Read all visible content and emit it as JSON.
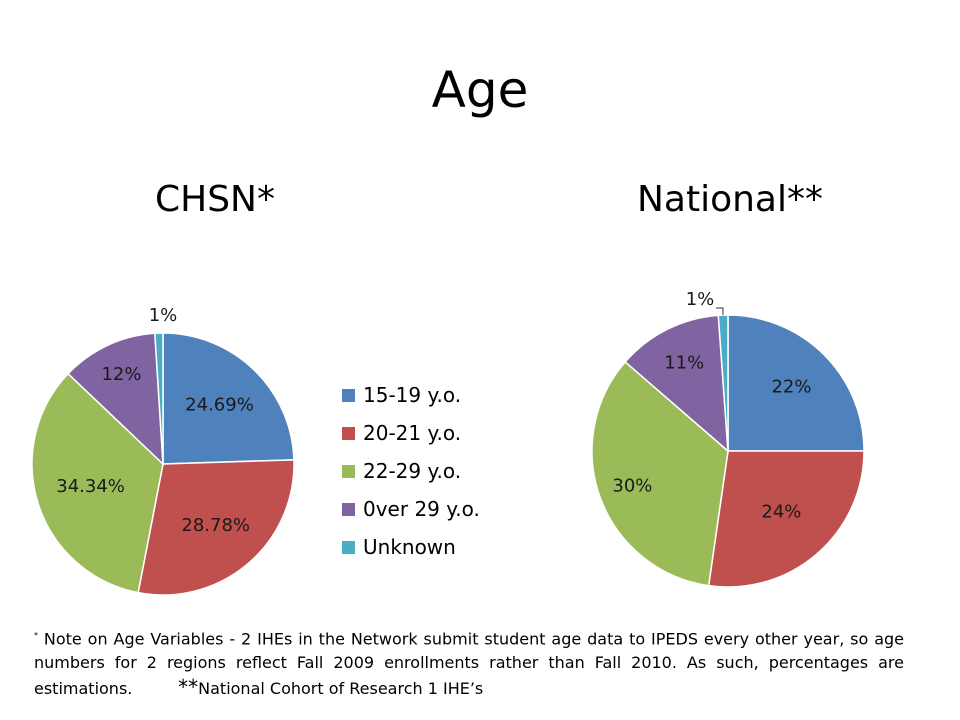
{
  "colors": {
    "15-19": "#4F81BD",
    "20-21": "#C0504D",
    "22-29": "#9BBB59",
    "over29": "#8064A2",
    "unknown": "#4BACC6"
  },
  "page": {
    "title": "Age"
  },
  "chart_data": [
    {
      "type": "pie",
      "title": "CHSN*",
      "categories": [
        "15-19 y.o.",
        "20-21 y.o.",
        "22-29 y.o.",
        "0ver 29 y.o.",
        "Unknown"
      ],
      "values": [
        24.69,
        28.78,
        34.34,
        12,
        1
      ],
      "labels": [
        "24.69%",
        "28.78%",
        "34.34%",
        "12%",
        "1%"
      ],
      "legend": "right"
    },
    {
      "type": "pie",
      "title": "National**",
      "categories": [
        "15-19 y.o.",
        "20-21 y.o.",
        "22-29 y.o.",
        "0ver 29 y.o.",
        "Unknown"
      ],
      "values": [
        22,
        24,
        30,
        11,
        1
      ],
      "labels": [
        "22%",
        "24%",
        "30%",
        "11%",
        "1%"
      ]
    }
  ],
  "footnote": {
    "marker": "*",
    "text": " Note on Age Variables - 2 IHEs in the Network submit student age data to IPEDS every other year, so age numbers for 2 regions reflect Fall 2009 enrollments rather than Fall 2010. As such, percentages are estimations.",
    "national_marker": "**",
    "national_text": "National Cohort of Research 1 IHE’s"
  }
}
